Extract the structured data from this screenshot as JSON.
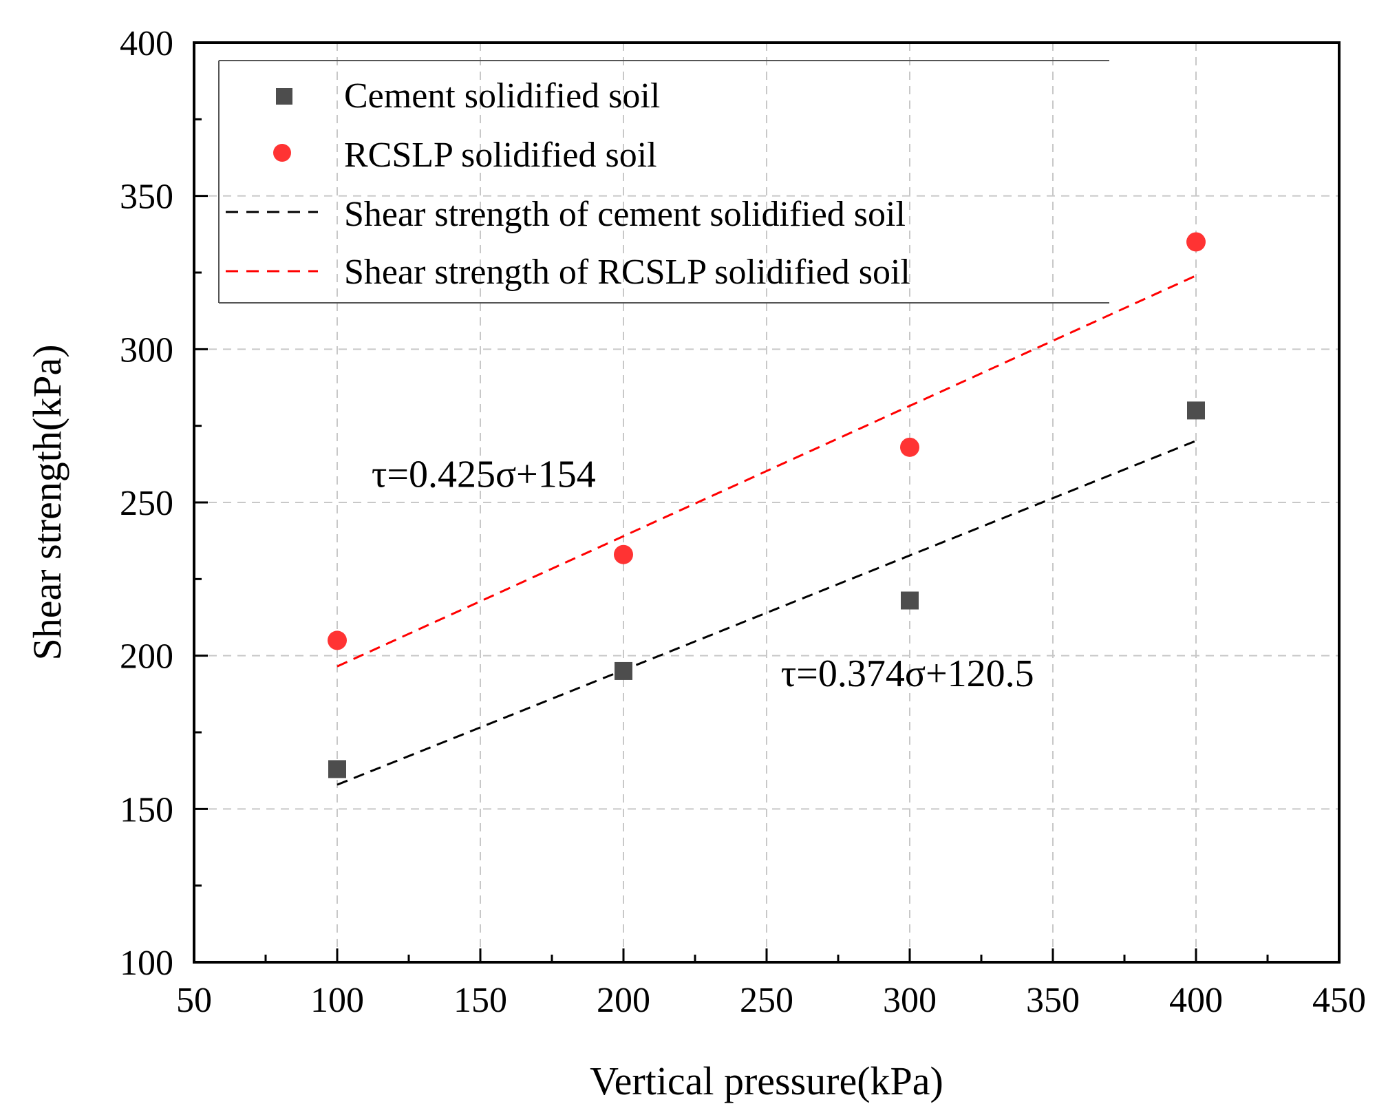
{
  "chart_data": {
    "type": "scatter",
    "title": "",
    "xlabel": "Vertical pressure(kPa)",
    "ylabel": "Shear strength(kPa)",
    "xlim": [
      50,
      450
    ],
    "ylim": [
      100,
      400
    ],
    "xticks": [
      50,
      100,
      150,
      200,
      250,
      300,
      350,
      400,
      450
    ],
    "yticks": [
      100,
      150,
      200,
      250,
      300,
      350,
      400
    ],
    "grid": true,
    "legend_position": "top-left",
    "series": [
      {
        "name": "Cement solidified soil",
        "marker": "square",
        "color": "#4d4d4d",
        "x": [
          100,
          200,
          300,
          400
        ],
        "y": [
          163,
          195,
          218,
          280
        ]
      },
      {
        "name": "RCSLP solidified soil",
        "marker": "circle",
        "color": "#ff3333",
        "x": [
          100,
          200,
          300,
          400
        ],
        "y": [
          205,
          233,
          268,
          335
        ]
      }
    ],
    "fit_lines": [
      {
        "name": "Shear strength of cement solidified soil",
        "color": "#000000",
        "slope": 0.374,
        "intercept": 120.5,
        "x_range": [
          100,
          400
        ],
        "equation": "τ=0.374σ+120.5",
        "equation_anchor": [
          255,
          190
        ]
      },
      {
        "name": "Shear strength of RCSLP solidified soil",
        "color": "#ff0000",
        "slope": 0.425,
        "intercept": 154,
        "x_range": [
          100,
          400
        ],
        "equation": "τ=0.425σ+154",
        "equation_anchor": [
          112,
          255
        ]
      }
    ]
  }
}
